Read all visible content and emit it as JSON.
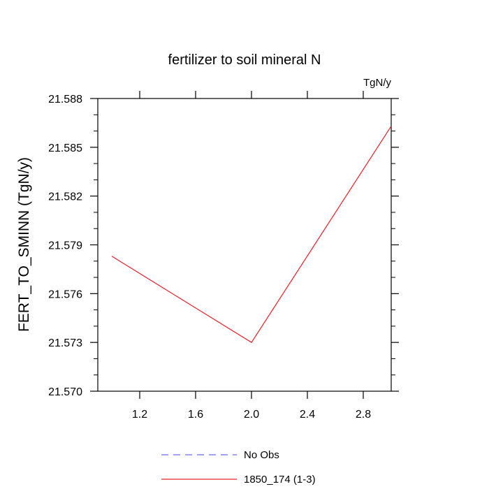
{
  "chart_data": {
    "type": "line",
    "title": "fertilizer to soil mineral N",
    "units_label": "TgN/y",
    "xlabel": "",
    "ylabel": "FERT_TO_SMINN  (TgN/y)",
    "xlim": [
      0.9,
      3.0
    ],
    "ylim": [
      21.57,
      21.588
    ],
    "x_ticks": [
      1.2,
      1.6,
      2.0,
      2.4,
      2.8
    ],
    "x_tick_labels": [
      "1.2",
      "1.6",
      "2.0",
      "2.4",
      "2.8"
    ],
    "y_ticks": [
      21.57,
      21.573,
      21.576,
      21.579,
      21.582,
      21.585,
      21.588
    ],
    "y_tick_labels": [
      "21.570",
      "21.573",
      "21.576",
      "21.579",
      "21.582",
      "21.585",
      "21.588"
    ],
    "grid": false,
    "legend_placement": "bottom-center",
    "series": [
      {
        "name": "No Obs",
        "color": "#6a6aee",
        "dash": "dashed",
        "x": [],
        "y": []
      },
      {
        "name": "1850_174 (1-3)",
        "color": "#e8202a",
        "dash": "solid",
        "x": [
          1.0,
          2.0,
          3.0
        ],
        "y": [
          21.5783,
          21.573,
          21.5863
        ]
      }
    ]
  }
}
